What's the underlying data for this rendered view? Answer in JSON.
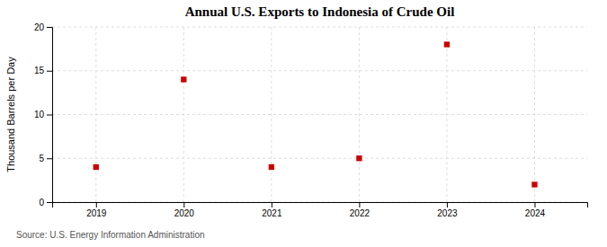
{
  "chart_data": {
    "type": "scatter",
    "title": "Annual U.S. Exports to Indonesia of Crude Oil",
    "ylabel": "Thousand Barrels per Day",
    "annotations": [
      "Source: U.S. Energy Information Administration"
    ],
    "x": [
      2019,
      2020,
      2021,
      2022,
      2023,
      2024
    ],
    "values": [
      4,
      14,
      4,
      5,
      18,
      2
    ],
    "color": "#cc0000",
    "marker": "square",
    "xlim": [
      2018.5,
      2024.6
    ],
    "xticks": [
      2019,
      2020,
      2021,
      2022,
      2023,
      2024
    ],
    "ylim": [
      0,
      20
    ],
    "yticks": [
      0,
      5,
      10,
      15,
      20
    ],
    "grid": true
  }
}
